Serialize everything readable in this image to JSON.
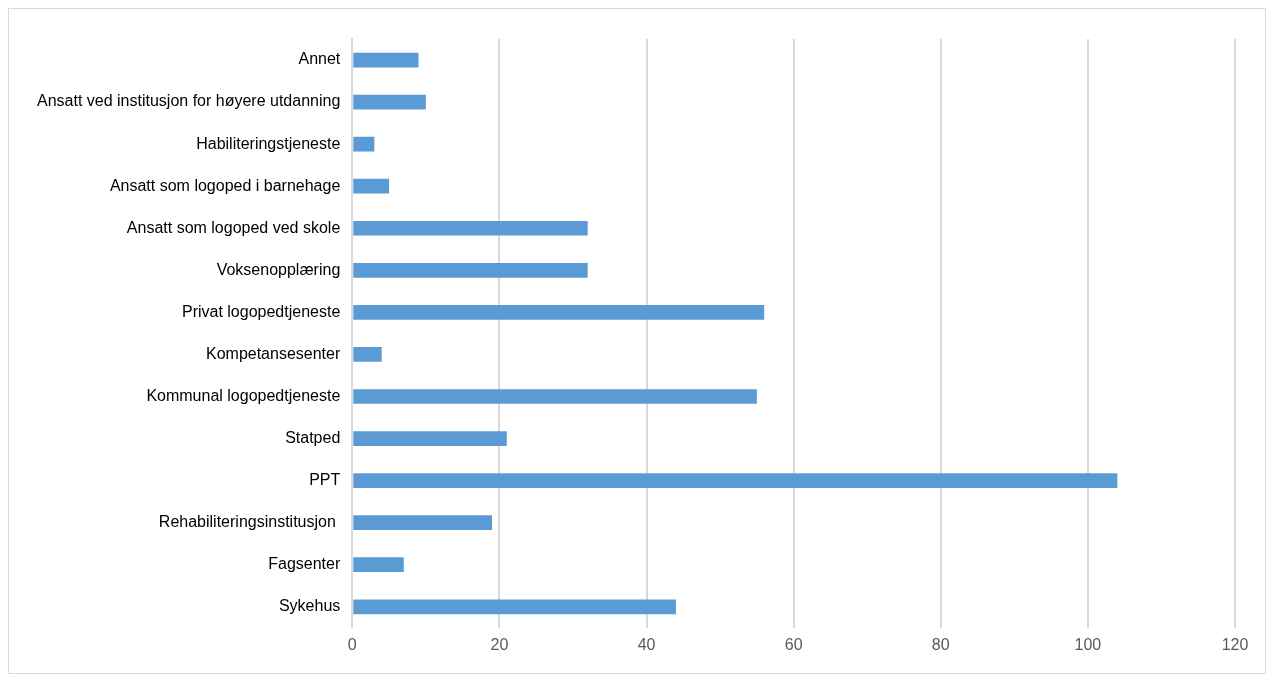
{
  "chart_data": {
    "type": "bar",
    "orientation": "horizontal",
    "categories": [
      "Annet",
      "Ansatt ved institusjon for høyere utdanning",
      "Habiliteringstjeneste",
      "Ansatt som logoped i barnehage",
      "Ansatt som logoped ved skole",
      "Voksenopplæring",
      "Privat logopedtjeneste",
      "Kompetansesenter",
      "Kommunal logopedtjeneste",
      "Statped",
      "PPT",
      "Rehabiliteringsinstitusjon ",
      "Fagsenter",
      "Sykehus"
    ],
    "values": [
      9,
      10,
      3,
      5,
      32,
      32,
      56,
      4,
      55,
      21,
      104,
      19,
      7,
      44
    ],
    "color": "#5b9bd5",
    "xlim": [
      0,
      120
    ],
    "xticks": [
      0,
      20,
      40,
      60,
      80,
      100,
      120
    ],
    "grid": "x",
    "legend": false
  }
}
